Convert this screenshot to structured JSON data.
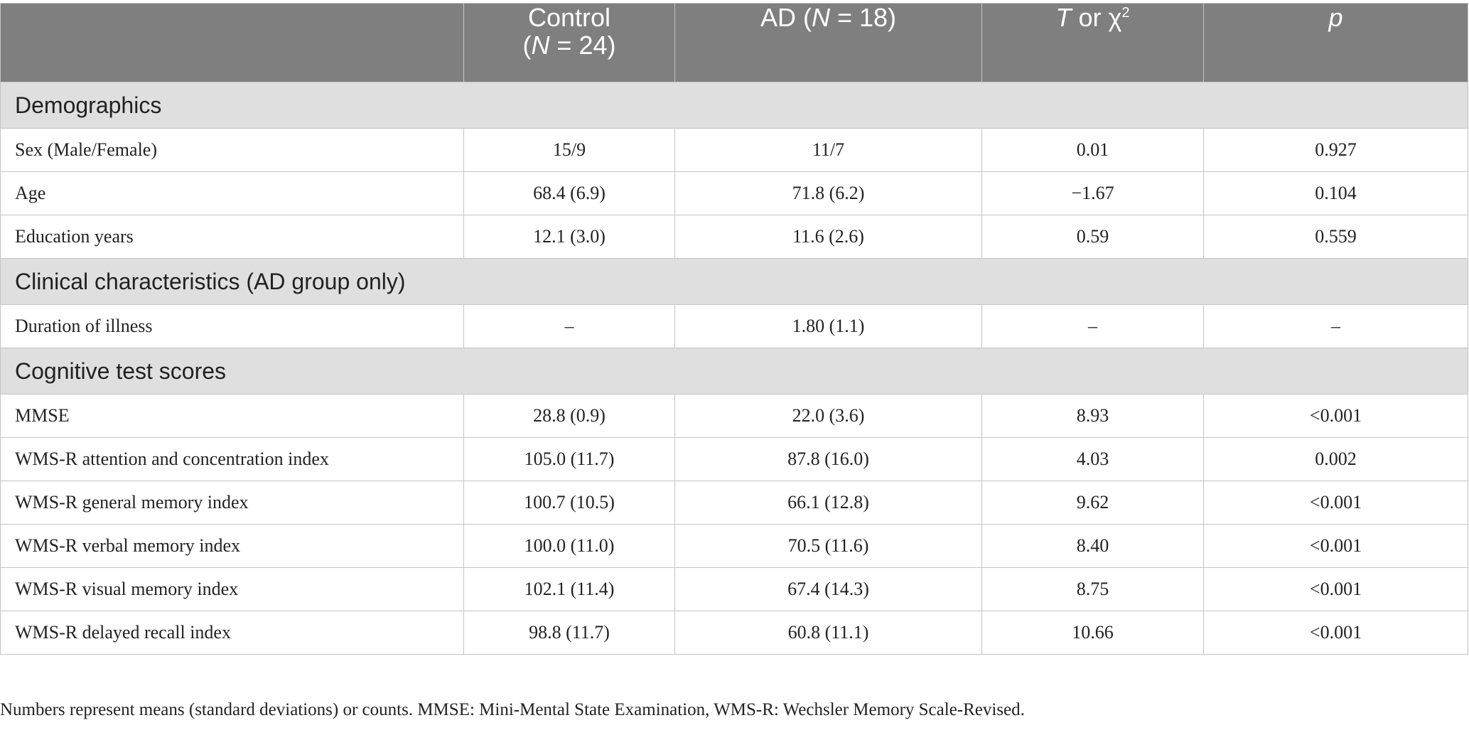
{
  "header": {
    "col1": "",
    "col2_line1": "Control",
    "col2_line2_italic": "N",
    "col2_line2_rest": " = 24)",
    "col2_line2_open": "(",
    "col3_pre": "AD (",
    "col3_italic": "N",
    "col3_post": " = 18)",
    "col4_italic": "T",
    "col4_mid": " or χ",
    "col4_sup": "2",
    "col5_italic": "p"
  },
  "sections": [
    {
      "title": "Demographics",
      "rows": [
        {
          "label": "Sex (Male/Female)",
          "control": "15/9",
          "ad": "11/7",
          "stat": "0.01",
          "p": "0.927"
        },
        {
          "label": "Age",
          "control": "68.4 (6.9)",
          "ad": "71.8 (6.2)",
          "stat": "−1.67",
          "p": "0.104"
        },
        {
          "label": "Education years",
          "control": "12.1 (3.0)",
          "ad": "11.6 (2.6)",
          "stat": "0.59",
          "p": "0.559"
        }
      ]
    },
    {
      "title": "Clinical characteristics (AD group only)",
      "rows": [
        {
          "label": "Duration of illness",
          "control": "–",
          "ad": "1.80 (1.1)",
          "stat": "–",
          "p": "–"
        }
      ]
    },
    {
      "title": "Cognitive test scores",
      "rows": [
        {
          "label": "MMSE",
          "control": "28.8 (0.9)",
          "ad": "22.0 (3.6)",
          "stat": "8.93",
          "p": "<0.001"
        },
        {
          "label": "WMS-R attention and concentration index",
          "control": "105.0 (11.7)",
          "ad": "87.8 (16.0)",
          "stat": "4.03",
          "p": "0.002"
        },
        {
          "label": "WMS-R general memory index",
          "control": "100.7 (10.5)",
          "ad": "66.1 (12.8)",
          "stat": "9.62",
          "p": "<0.001"
        },
        {
          "label": "WMS-R verbal memory index",
          "control": "100.0 (11.0)",
          "ad": "70.5 (11.6)",
          "stat": "8.40",
          "p": "<0.001"
        },
        {
          "label": "WMS-R visual memory index",
          "control": "102.1 (11.4)",
          "ad": "67.4 (14.3)",
          "stat": "8.75",
          "p": "<0.001"
        },
        {
          "label": "WMS-R delayed recall index",
          "control": "98.8 (11.7)",
          "ad": "60.8 (11.1)",
          "stat": "10.66",
          "p": "<0.001"
        }
      ]
    }
  ],
  "footnote": "Numbers represent means (standard deviations) or counts. MMSE: Mini-Mental State Examination, WMS-R: Wechsler Memory Scale-Revised.",
  "colors": {
    "header_bg": "#7f7f7f",
    "section_bg": "#e0dfdf",
    "border": "#c4c4c4"
  }
}
